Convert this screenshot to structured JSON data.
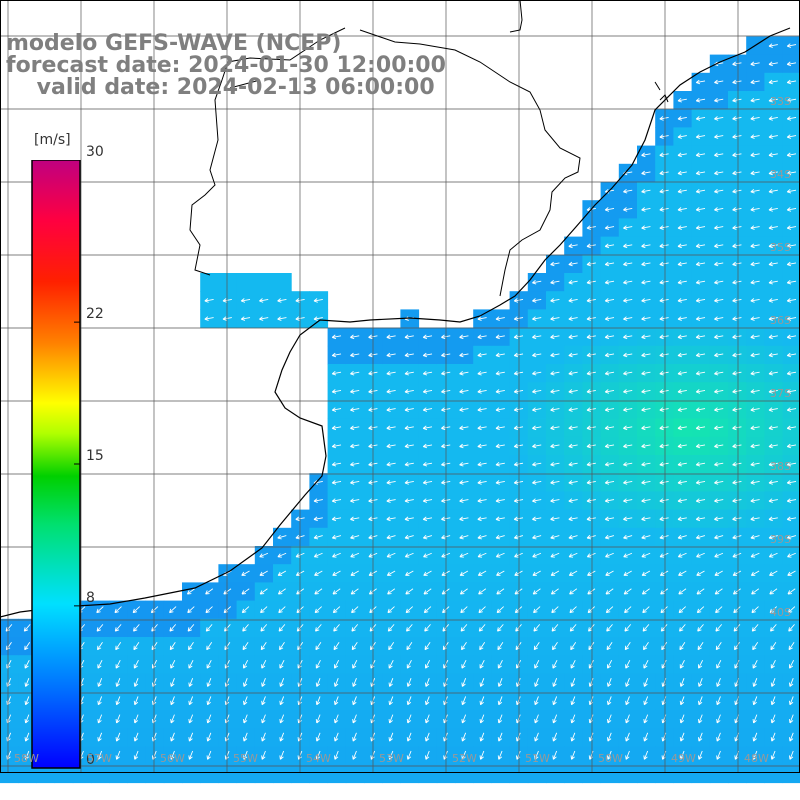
{
  "title": {
    "line1": "modelo GEFS-WAVE (NCEP)",
    "line2": "forecast date: 2024-01-30 12:00:00",
    "line3": "    valid date: 2024-02-13 06:00:00"
  },
  "colorbar": {
    "unit": "[m/s]",
    "ticks": [
      {
        "value": 30,
        "label": "30"
      },
      {
        "value": 22,
        "label": "22"
      },
      {
        "value": 15,
        "label": "15"
      },
      {
        "value": 8,
        "label": "8"
      },
      {
        "value": 0,
        "label": "0"
      }
    ],
    "min": 0,
    "max": 30
  },
  "map": {
    "lat_labels": [
      "33S",
      "34S",
      "35S",
      "36S",
      "37S",
      "38S",
      "39S",
      "40S"
    ],
    "lon_labels": [
      "58W",
      "57W",
      "56W",
      "55W",
      "54W",
      "53W",
      "52W",
      "51W",
      "50W",
      "49W",
      "48W"
    ],
    "field": "wind speed (shaded) with wind direction arrows",
    "colors": {
      "land": "#ffffff",
      "coast": "#000000",
      "grid": "#555555",
      "arrow": "#ffffff",
      "ocean_typical": "#22b8ef"
    }
  }
}
